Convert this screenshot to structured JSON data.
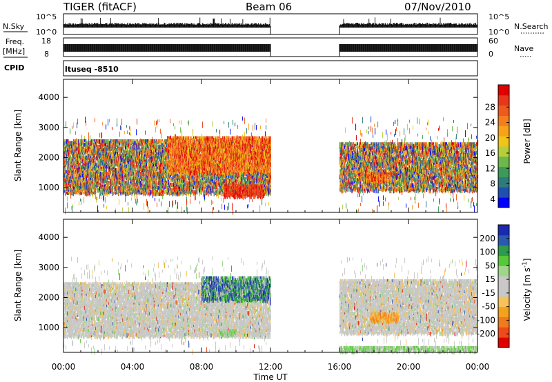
{
  "header": {
    "radar": "TIGER (fitACF)",
    "beam": "Beam 06",
    "date": "07/Nov/2010"
  },
  "top_panels": {
    "nsky_label": "N.Sky",
    "nsearch_label": "N.Search",
    "nsky_ticks": [
      "10^5",
      "10^0"
    ],
    "nsearch_ticks": [
      "10^5",
      "10^0"
    ],
    "freq_label": "Freq.",
    "freq_unit": "[MHz]",
    "freq_ticks": [
      "18",
      "8"
    ],
    "nave_label": "Nave",
    "nave_ticks": [
      "60",
      "0"
    ],
    "cpid_label": "CPID",
    "cpid_value": "ltuseq -8510"
  },
  "x_axis": {
    "label": "Time UT",
    "ticks": [
      "00:00",
      "04:00",
      "08:00",
      "12:00",
      "16:00",
      "20:00",
      "00:00"
    ]
  },
  "chart_data": [
    {
      "type": "heatmap",
      "name": "power",
      "ylabel": "Slant Range [km]",
      "yticks": [
        1000,
        2000,
        3000,
        4000
      ],
      "ylim": [
        180,
        4600
      ],
      "xlim_hours": [
        0,
        24
      ],
      "data_gap_hours": [
        12,
        16
      ],
      "colorbar": {
        "label": "Power [dB]",
        "ticks": [
          "28",
          "24",
          "20",
          "16",
          "12",
          "8",
          "4"
        ],
        "colors": [
          "#0000ff",
          "#1f4fb0",
          "#2f7a7a",
          "#3c9a5a",
          "#6cb84a",
          "#b5cf3a",
          "#f0c419",
          "#f7a21b",
          "#f47e1e",
          "#ee5a1e",
          "#e8361c",
          "#e00000"
        ]
      },
      "regions": [
        {
          "t0": 0.0,
          "t1": 12.0,
          "r0": 800,
          "r1": 2600,
          "level": "mixed"
        },
        {
          "t0": 6.0,
          "t1": 12.0,
          "r0": 1500,
          "r1": 2700,
          "level": "high"
        },
        {
          "t0": 9.3,
          "t1": 11.6,
          "r0": 700,
          "r1": 1100,
          "level": "very-high"
        },
        {
          "t0": 16.0,
          "t1": 24.0,
          "r0": 900,
          "r1": 2500,
          "level": "mixed"
        },
        {
          "t0": 17.5,
          "t1": 19.0,
          "r0": 1200,
          "r1": 1500,
          "level": "high"
        }
      ]
    },
    {
      "type": "heatmap",
      "name": "velocity",
      "ylabel": "Slant Range [km]",
      "yticks": [
        1000,
        2000,
        3000,
        4000
      ],
      "ylim": [
        180,
        4600
      ],
      "xlim_hours": [
        0,
        24
      ],
      "data_gap_hours": [
        12,
        16
      ],
      "colorbar": {
        "label": "Velocity [m s^-1]",
        "ticks": [
          "200",
          "100",
          "50",
          "15",
          "-15",
          "-50",
          "-100",
          "-200"
        ],
        "colors": [
          "#e00000",
          "#ee4a1a",
          "#f07a1c",
          "#f3a11e",
          "#f7c25a",
          "#c8c8c8",
          "#c8c8c8",
          "#9fd68a",
          "#56c83a",
          "#2e9a4c",
          "#2a5ab0",
          "#1a2ab0"
        ]
      },
      "regions": [
        {
          "t0": 0.0,
          "t1": 12.0,
          "r0": 700,
          "r1": 2500,
          "level": "near-zero"
        },
        {
          "t0": 8.0,
          "t1": 12.0,
          "r0": 1900,
          "r1": 2700,
          "level": "positive"
        },
        {
          "t0": 9.0,
          "t1": 10.0,
          "r0": 750,
          "r1": 950,
          "level": "slight-positive"
        },
        {
          "t0": 16.0,
          "t1": 24.0,
          "r0": 800,
          "r1": 2600,
          "level": "near-zero"
        },
        {
          "t0": 17.8,
          "t1": 19.4,
          "r0": 1200,
          "r1": 1500,
          "level": "negative"
        },
        {
          "t0": 16.0,
          "t1": 24.0,
          "r0": 200,
          "r1": 380,
          "level": "slight-positive"
        }
      ]
    }
  ]
}
